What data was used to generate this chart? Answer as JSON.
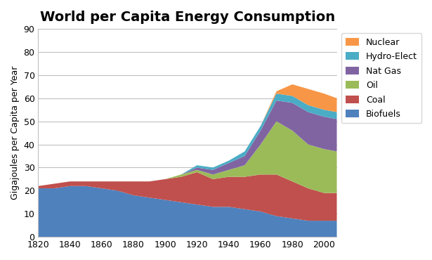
{
  "title": "World per Capita Energy Consumption",
  "ylabel": "Gigajoules per Capita per Year",
  "ylim": [
    0,
    90
  ],
  "years": [
    1820,
    1830,
    1840,
    1850,
    1860,
    1870,
    1880,
    1890,
    1900,
    1910,
    1920,
    1930,
    1940,
    1950,
    1960,
    1970,
    1980,
    1990,
    2000,
    2008
  ],
  "biofuels": [
    21,
    21,
    22,
    22,
    21,
    20,
    18,
    17,
    16,
    15,
    14,
    13,
    13,
    12,
    11,
    9,
    8,
    7,
    7,
    7
  ],
  "coal": [
    1,
    2,
    2,
    2,
    3,
    4,
    6,
    7,
    9,
    11,
    14,
    12,
    13,
    14,
    16,
    18,
    16,
    14,
    12,
    12
  ],
  "oil": [
    0,
    0,
    0,
    0,
    0,
    0,
    0,
    0,
    0,
    1,
    1,
    2,
    3,
    5,
    13,
    23,
    22,
    19,
    19,
    18
  ],
  "nat_gas": [
    0,
    0,
    0,
    0,
    0,
    0,
    0,
    0,
    0,
    0,
    1,
    2,
    3,
    4,
    6,
    9,
    12,
    14,
    14,
    14
  ],
  "hydro": [
    0,
    0,
    0,
    0,
    0,
    0,
    0,
    0,
    0,
    0,
    1,
    1,
    1,
    2,
    2,
    3,
    3,
    3,
    3,
    3
  ],
  "nuclear": [
    0,
    0,
    0,
    0,
    0,
    0,
    0,
    0,
    0,
    0,
    0,
    0,
    0,
    0,
    0,
    1,
    5,
    7,
    7,
    6
  ],
  "colors": {
    "biofuels": "#4F81BD",
    "coal": "#C0504D",
    "oil": "#9BBB59",
    "nat_gas": "#8064A2",
    "hydro": "#4BACC6",
    "nuclear": "#F79646"
  },
  "xtick_labels": [
    "1820",
    "1840",
    "1860",
    "1880",
    "1900",
    "1920",
    "1940",
    "1960",
    "1980",
    "2000"
  ],
  "xtick_positions": [
    1820,
    1840,
    1860,
    1880,
    1900,
    1920,
    1940,
    1960,
    1980,
    2000
  ],
  "title_fontsize": 14,
  "label_fontsize": 9,
  "tick_fontsize": 9,
  "legend_fontsize": 9
}
